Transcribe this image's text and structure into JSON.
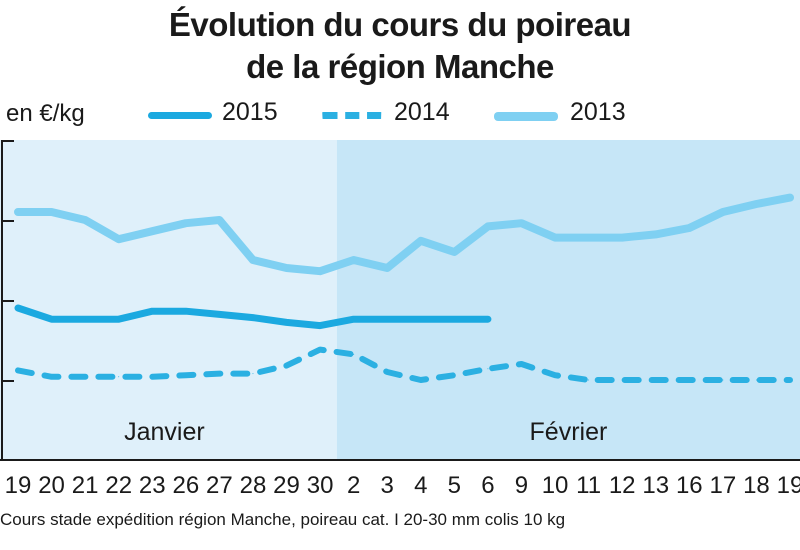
{
  "title_line1": "Évolution du cours du poireau",
  "title_line2": "de la région Manche",
  "source": "Cours stade expédition région Manche, poireau cat. I 20-30 mm colis 10 kg",
  "chart_data": {
    "type": "line",
    "ylabel": "en €/kg",
    "y_ticks": [
      "",
      "",
      "",
      "",
      ""
    ],
    "categories": [
      "19",
      "20",
      "21",
      "22",
      "23",
      "26",
      "27",
      "28",
      "29",
      "30",
      "2",
      "3",
      "4",
      "5",
      "6",
      "9",
      "10",
      "11",
      "12",
      "13",
      "16",
      "17",
      "18",
      "19"
    ],
    "months": [
      {
        "label": "Janvier",
        "from_index": 0,
        "to_index": 9,
        "color": "#dff0fa"
      },
      {
        "label": "Février",
        "from_index": 10,
        "to_index": 23,
        "color": "#c6e6f7"
      }
    ],
    "series": [
      {
        "name": "2015",
        "style": "solid",
        "color": "#1ba9e0",
        "values": [
          3.95,
          3.88,
          3.88,
          3.88,
          3.93,
          3.93,
          3.91,
          3.89,
          3.86,
          3.84,
          3.88,
          3.88,
          3.88,
          3.88,
          3.88,
          null,
          null,
          null,
          null,
          null,
          null,
          null,
          null,
          null
        ]
      },
      {
        "name": "2014",
        "style": "dashed",
        "color": "#2bb0e2",
        "values": [
          3.56,
          3.52,
          3.52,
          3.52,
          3.52,
          3.53,
          3.54,
          3.54,
          3.59,
          3.69,
          3.66,
          3.55,
          3.5,
          3.53,
          3.57,
          3.6,
          3.53,
          3.5,
          3.5,
          3.5,
          3.5,
          3.5,
          3.5,
          3.5
        ]
      },
      {
        "name": "2013",
        "style": "solid",
        "color": "#7fd0f2",
        "values": [
          4.55,
          4.55,
          4.5,
          4.38,
          4.43,
          4.48,
          4.5,
          4.25,
          4.2,
          4.18,
          4.25,
          4.2,
          4.37,
          4.3,
          4.46,
          4.48,
          4.39,
          4.39,
          4.39,
          4.41,
          4.45,
          4.55,
          4.6,
          4.64
        ]
      }
    ],
    "ylim": [
      3.0,
      5.0
    ],
    "xlabel": "",
    "grid": false,
    "legend_position": "top"
  }
}
